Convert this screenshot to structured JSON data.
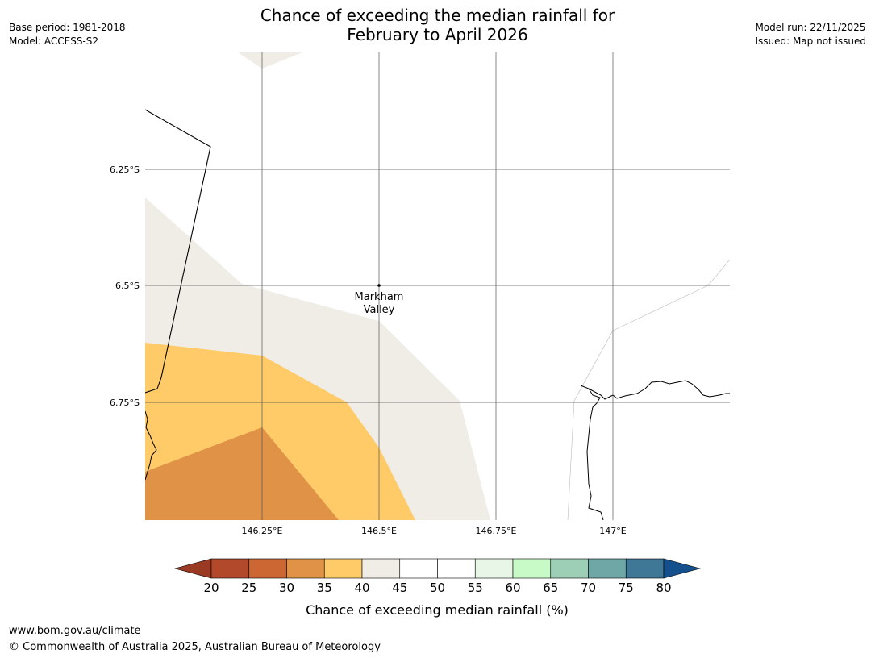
{
  "header": {
    "title_line1": "Chance of exceeding the median rainfall for",
    "title_line2": "February to April 2026",
    "base_period": "Base period: 1981-2018",
    "model": "Model: ACCESS-S2",
    "model_run": "Model run: 22/11/2025",
    "issued": "Issued: Map not issued"
  },
  "map": {
    "lat_labels": [
      "6.25°S",
      "6.5°S",
      "6.75°S"
    ],
    "lon_labels": [
      "146.25°E",
      "146.5°E",
      "146.75°E",
      "147°E"
    ],
    "place": {
      "name_line1": "Markham",
      "name_line2": "Valley"
    }
  },
  "legend": {
    "title": "Chance of exceeding median rainfall (%)",
    "ticks": [
      "20",
      "25",
      "30",
      "35",
      "40",
      "45",
      "50",
      "55",
      "60",
      "65",
      "70",
      "75",
      "80"
    ],
    "colors": [
      "#9b3a22",
      "#b2492a",
      "#cc6633",
      "#e09347",
      "#fecb68",
      "#f0ece6",
      "#ffffff",
      "#ffffff",
      "#e8f6e8",
      "#c8fac8",
      "#9ccfb6",
      "#6fa6a6",
      "#3f7796",
      "#14508c"
    ]
  },
  "footer": {
    "url": "www.bom.gov.au/climate",
    "copyright": "© Commonwealth of Australia 2025, Australian Bureau of Meteorology"
  }
}
